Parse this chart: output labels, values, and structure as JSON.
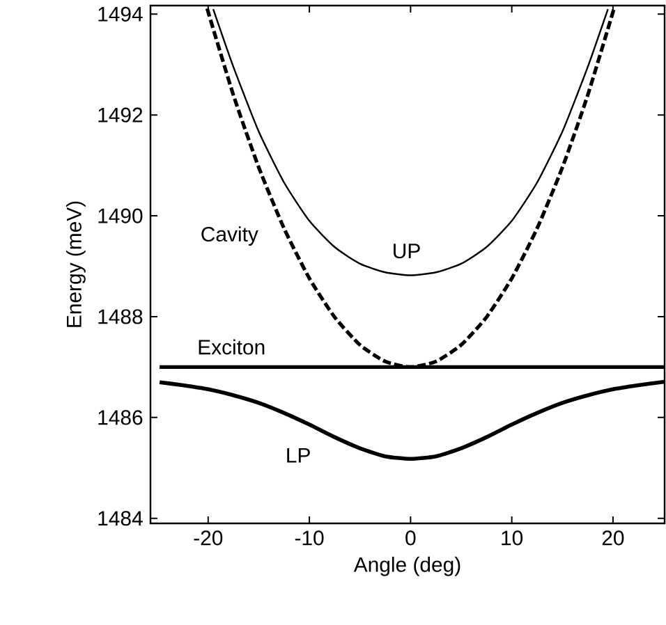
{
  "chart_data": {
    "type": "line",
    "xlabel": "Angle (deg)",
    "ylabel": "Energy (meV)",
    "xlim": [
      -25.7,
      25.1
    ],
    "ylim": [
      1483.9,
      1494.17
    ],
    "xticks": [
      -20,
      -10,
      0,
      10,
      20
    ],
    "yticks": [
      1484,
      1486,
      1488,
      1490,
      1492,
      1494
    ],
    "grid": false,
    "legend": false,
    "marker": "none",
    "series": [
      {
        "name": "Cavity",
        "color": "#000000",
        "line_style": "dashed",
        "x": [
          -20.1,
          -17.5,
          -15,
          -12.5,
          -10,
          -7.5,
          -5,
          -2.5,
          0,
          2.5,
          5,
          7.5,
          10,
          12.5,
          15,
          17.5,
          20.1
        ],
        "values": [
          1494.11,
          1492.39,
          1490.96,
          1489.75,
          1488.76,
          1487.99,
          1487.44,
          1487.11,
          1487.0,
          1487.11,
          1487.44,
          1487.99,
          1488.76,
          1489.75,
          1490.96,
          1492.39,
          1494.11
        ]
      },
      {
        "name": "UP",
        "color": "#000000",
        "line_style": "solid",
        "x": [
          -19.5,
          -17.5,
          -15,
          -12.5,
          -10,
          -7.5,
          -5,
          -2.5,
          0,
          2.5,
          5,
          7.5,
          10,
          12.5,
          15,
          17.5,
          19.5
        ],
        "values": [
          1494.1,
          1492.95,
          1491.67,
          1490.66,
          1489.9,
          1489.38,
          1489.05,
          1488.88,
          1488.82,
          1488.88,
          1489.05,
          1489.38,
          1489.9,
          1490.66,
          1491.67,
          1492.95,
          1494.1
        ]
      },
      {
        "name": "Exciton",
        "color": "#000000",
        "line_style": "solid",
        "x": [
          -24.8,
          25.1
        ],
        "values": [
          1487.0,
          1487.0
        ]
      },
      {
        "name": "LP",
        "color": "#000000",
        "line_style": "solid",
        "x": [
          -24.8,
          -22.5,
          -20,
          -17.5,
          -15,
          -12.5,
          -10,
          -7.5,
          -5,
          -2.5,
          0,
          2.5,
          5,
          7.5,
          10,
          12.5,
          15,
          17.5,
          20,
          22.5,
          25.1
        ],
        "values": [
          1486.7,
          1486.64,
          1486.56,
          1486.44,
          1486.29,
          1486.09,
          1485.86,
          1485.61,
          1485.39,
          1485.23,
          1485.18,
          1485.23,
          1485.39,
          1485.61,
          1485.86,
          1486.09,
          1486.29,
          1486.44,
          1486.56,
          1486.64,
          1486.71
        ]
      }
    ]
  }
}
